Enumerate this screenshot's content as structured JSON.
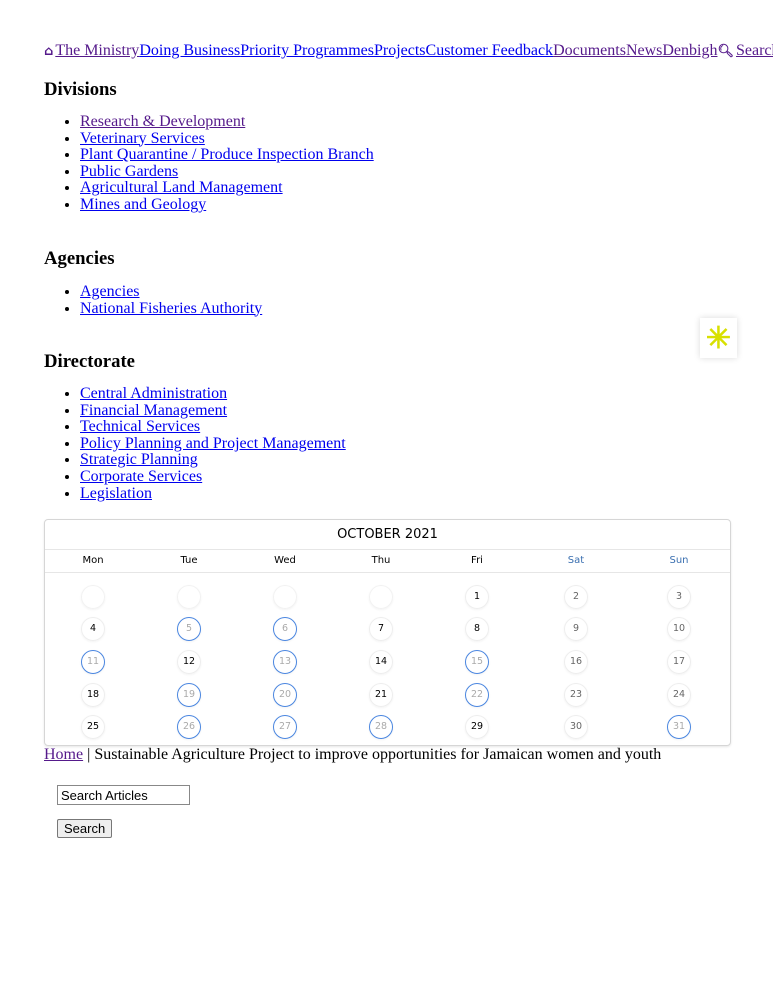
{
  "nav": {
    "items": [
      {
        "label": "The Ministry",
        "visited": true,
        "icon": "home-icon"
      },
      {
        "label": "Doing Business",
        "visited": false
      },
      {
        "label": "Priority Programmes",
        "visited": false
      },
      {
        "label": "Projects",
        "visited": false
      },
      {
        "label": "Customer Feedback",
        "visited": false
      },
      {
        "label": "Documents",
        "visited": true
      },
      {
        "label": "News",
        "visited": true
      },
      {
        "label": "Denbigh",
        "visited": true
      },
      {
        "label": "Search",
        "visited": true,
        "icon": "search-icon"
      }
    ]
  },
  "divisions": {
    "title": "Divisions",
    "items": [
      "Research & Development",
      "Veterinary Services",
      "Plant Quarantine / Produce Inspection Branch",
      "Public Gardens",
      "Agricultural Land Management",
      "Mines and Geology"
    ]
  },
  "agencies": {
    "title": "Agencies",
    "items": [
      "Agencies",
      "National Fisheries Authority"
    ]
  },
  "directorate": {
    "title": "Directorate",
    "items": [
      "Central Administration",
      "Financial Management",
      "Technical Services",
      "Policy Planning and Project Management",
      "Strategic Planning",
      "Corporate Services",
      "Legislation"
    ]
  },
  "calendar": {
    "title": "OCTOBER 2021",
    "weekdays": [
      "Mon",
      "Tue",
      "Wed",
      "Thu",
      "Fri",
      "Sat",
      "Sun"
    ],
    "first_weekday_index": 4,
    "days_in_month": 31,
    "event_days": [
      5,
      6,
      11,
      13,
      15,
      19,
      20,
      22,
      26,
      27,
      28,
      31
    ],
    "event_color": "#4a86e0"
  },
  "breadcrumb": {
    "home": "Home",
    "separator": "|",
    "current": "Sustainable Agriculture Project to improve opportunities for Jamaican women and youth"
  },
  "search": {
    "value": "Search Articles",
    "button": "Search"
  },
  "widget": {
    "icon": "accessibility-sparkle-icon",
    "color": "#d8e000"
  }
}
